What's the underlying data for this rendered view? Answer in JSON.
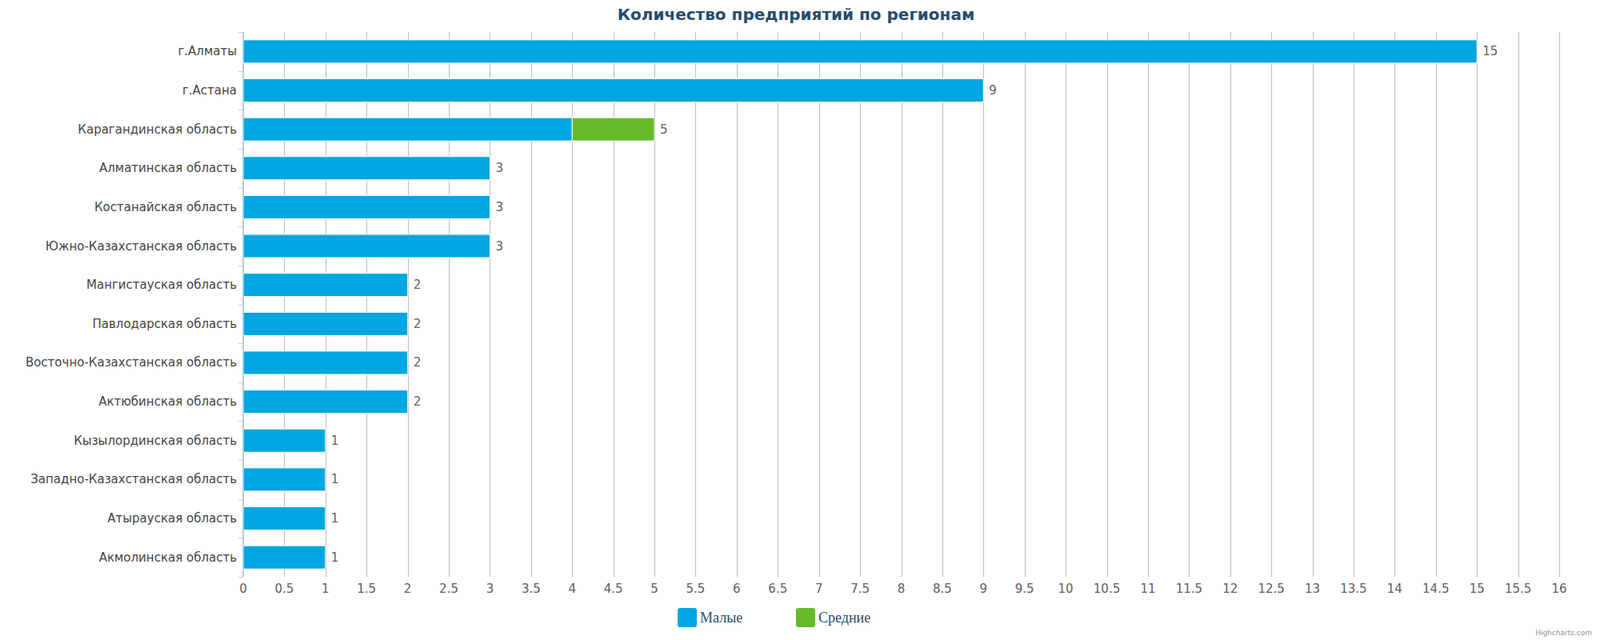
{
  "chart_data": {
    "type": "bar",
    "orientation": "horizontal",
    "stacked": true,
    "title": "Количество предприятий по регионам",
    "categories": [
      "г.Алматы",
      "г.Астана",
      "Карагандинская область",
      "Алматинская область",
      "Костанайская область",
      "Южно-Казахстанская область",
      "Мангистауская область",
      "Павлодарская область",
      "Восточно-Казахстанская область",
      "Актюбинская область",
      "Кызылординская область",
      "Западно-Казахстанская область",
      "Атырауская область",
      "Акмолинская область"
    ],
    "series": [
      {
        "name": "Малые",
        "color": "#00a6e0",
        "values": [
          15,
          9,
          4,
          3,
          3,
          3,
          2,
          2,
          2,
          2,
          1,
          1,
          1,
          1
        ]
      },
      {
        "name": "Средние",
        "color": "#66bb2a",
        "values": [
          null,
          null,
          1,
          null,
          null,
          null,
          null,
          null,
          null,
          null,
          null,
          null,
          null,
          null
        ]
      }
    ],
    "totals": [
      15,
      9,
      5,
      3,
      3,
      3,
      2,
      2,
      2,
      2,
      1,
      1,
      1,
      1
    ],
    "data_labels": true,
    "xlim": [
      0,
      16
    ],
    "xticks": [
      0,
      0.5,
      1,
      1.5,
      2,
      2.5,
      3,
      3.5,
      4,
      4.5,
      5,
      5.5,
      6,
      6.5,
      7,
      7.5,
      8,
      8.5,
      9,
      9.5,
      10,
      10.5,
      11,
      11.5,
      12,
      12.5,
      13,
      13.5,
      14,
      14.5,
      15,
      15.5,
      16
    ],
    "grid": true,
    "legend": "bottom",
    "credits": "Highcharts.com"
  }
}
